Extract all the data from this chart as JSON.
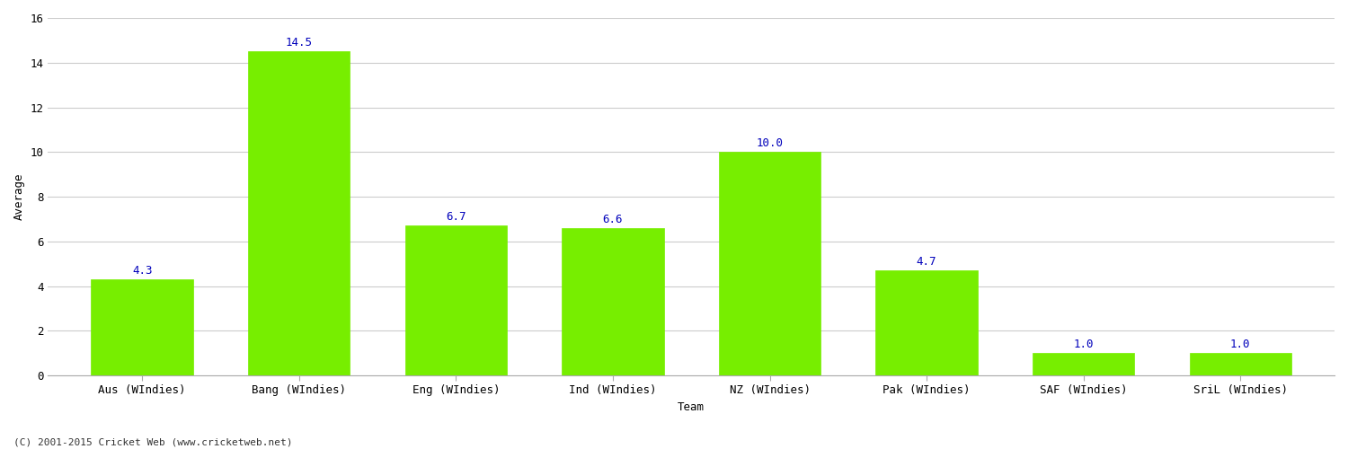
{
  "categories": [
    "Aus (WIndies)",
    "Bang (WIndies)",
    "Eng (WIndies)",
    "Ind (WIndies)",
    "NZ (WIndies)",
    "Pak (WIndies)",
    "SAF (WIndies)",
    "SriL (WIndies)"
  ],
  "values": [
    4.3,
    14.5,
    6.7,
    6.6,
    10.0,
    4.7,
    1.0,
    1.0
  ],
  "bar_color": "#77ee00",
  "bar_edge_color": "#77ee00",
  "label_color": "#0000bb",
  "xlabel": "Team",
  "ylabel": "Average",
  "ylim": [
    0,
    16
  ],
  "yticks": [
    0,
    2,
    4,
    6,
    8,
    10,
    12,
    14,
    16
  ],
  "grid_color": "#cccccc",
  "background_color": "#ffffff",
  "footer": "(C) 2001-2015 Cricket Web (www.cricketweb.net)",
  "label_fontsize": 9,
  "axis_label_fontsize": 9,
  "tick_fontsize": 9,
  "footer_fontsize": 8,
  "bar_width": 0.65
}
